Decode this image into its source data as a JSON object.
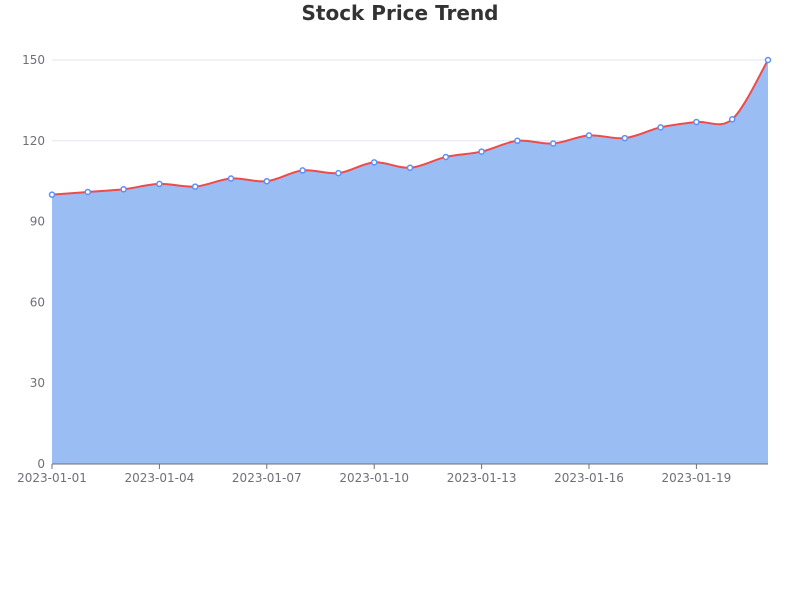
{
  "title": "Stock Price Trend",
  "colors": {
    "line": "#ee4b4b",
    "area": "#9abdf4",
    "point_fill": "#ffffff",
    "point_stroke": "#5b8ff9",
    "grid": "#e0e6f1",
    "axis": "#6e7079"
  },
  "chart_data": {
    "type": "area",
    "title": "Stock Price Trend",
    "xlabel": "",
    "ylabel": "",
    "x": [
      "2023-01-01",
      "2023-01-02",
      "2023-01-03",
      "2023-01-04",
      "2023-01-05",
      "2023-01-06",
      "2023-01-07",
      "2023-01-08",
      "2023-01-09",
      "2023-01-10",
      "2023-01-11",
      "2023-01-12",
      "2023-01-13",
      "2023-01-14",
      "2023-01-15",
      "2023-01-16",
      "2023-01-17",
      "2023-01-18",
      "2023-01-19",
      "2023-01-20",
      "2023-01-21"
    ],
    "values": [
      100,
      101,
      102,
      104,
      103,
      106,
      105,
      109,
      108,
      112,
      110,
      114,
      116,
      120,
      119,
      122,
      121,
      125,
      127,
      128,
      150
    ],
    "x_tick_labels": [
      "2023-01-01",
      "2023-01-04",
      "2023-01-07",
      "2023-01-10",
      "2023-01-13",
      "2023-01-16",
      "2023-01-19"
    ],
    "y_ticks": [
      0,
      30,
      60,
      90,
      120,
      150
    ],
    "ylim": [
      0,
      150
    ],
    "smooth": true,
    "grid": true,
    "legend": "none"
  }
}
